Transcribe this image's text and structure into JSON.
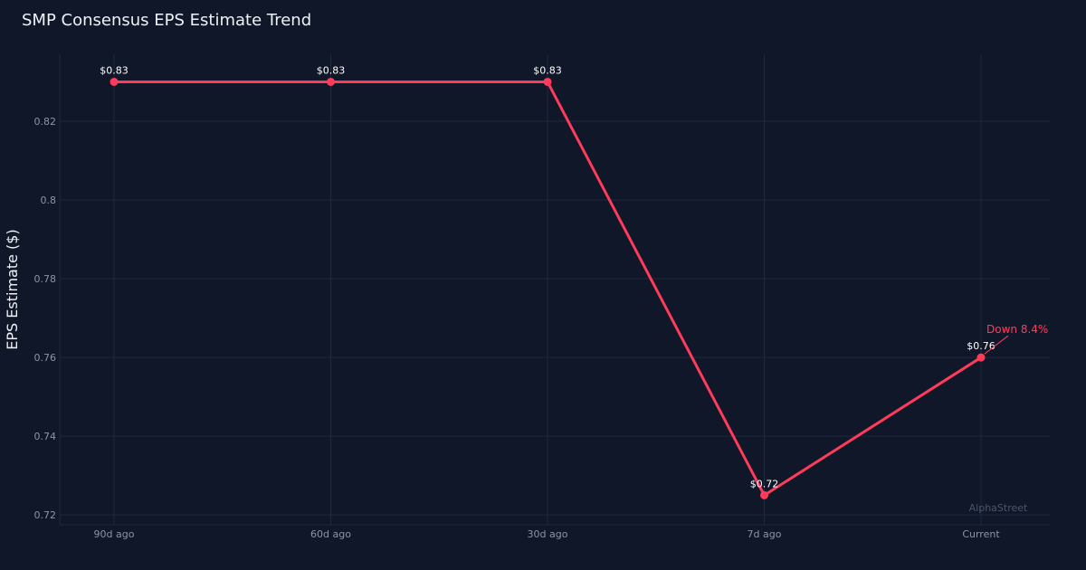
{
  "chart_data": {
    "type": "line",
    "title": "SMP Consensus EPS Estimate Trend",
    "xlabel": "",
    "ylabel": "EPS Estimate ($)",
    "categories": [
      "90d ago",
      "60d ago",
      "30d ago",
      "7d ago",
      "Current"
    ],
    "series": [
      {
        "values": [
          0.83,
          0.83,
          0.83,
          0.725,
          0.76
        ],
        "point_labels": [
          "$0.83",
          "$0.83",
          "$0.83",
          "$0.72",
          "$0.76"
        ],
        "color": "#ff3b5c"
      }
    ],
    "ylim": [
      0.7175,
      0.837
    ],
    "yticks": [
      0.72,
      0.74,
      0.76,
      0.78,
      0.8,
      0.82
    ],
    "ytick_labels": [
      "0.72",
      "0.74",
      "0.76",
      "0.78",
      "0.8",
      "0.82"
    ],
    "grid": true,
    "annotation": {
      "text": "Down 8.4%",
      "category_index": 4,
      "color": "#ff3b5c"
    },
    "watermark": "AlphaStreet"
  },
  "colors": {
    "background": "#0f1729",
    "grid": "#1f2a3d",
    "tick_text": "#8b95a8",
    "title_text": "#eef1f6",
    "line": "#ff3b5c"
  }
}
